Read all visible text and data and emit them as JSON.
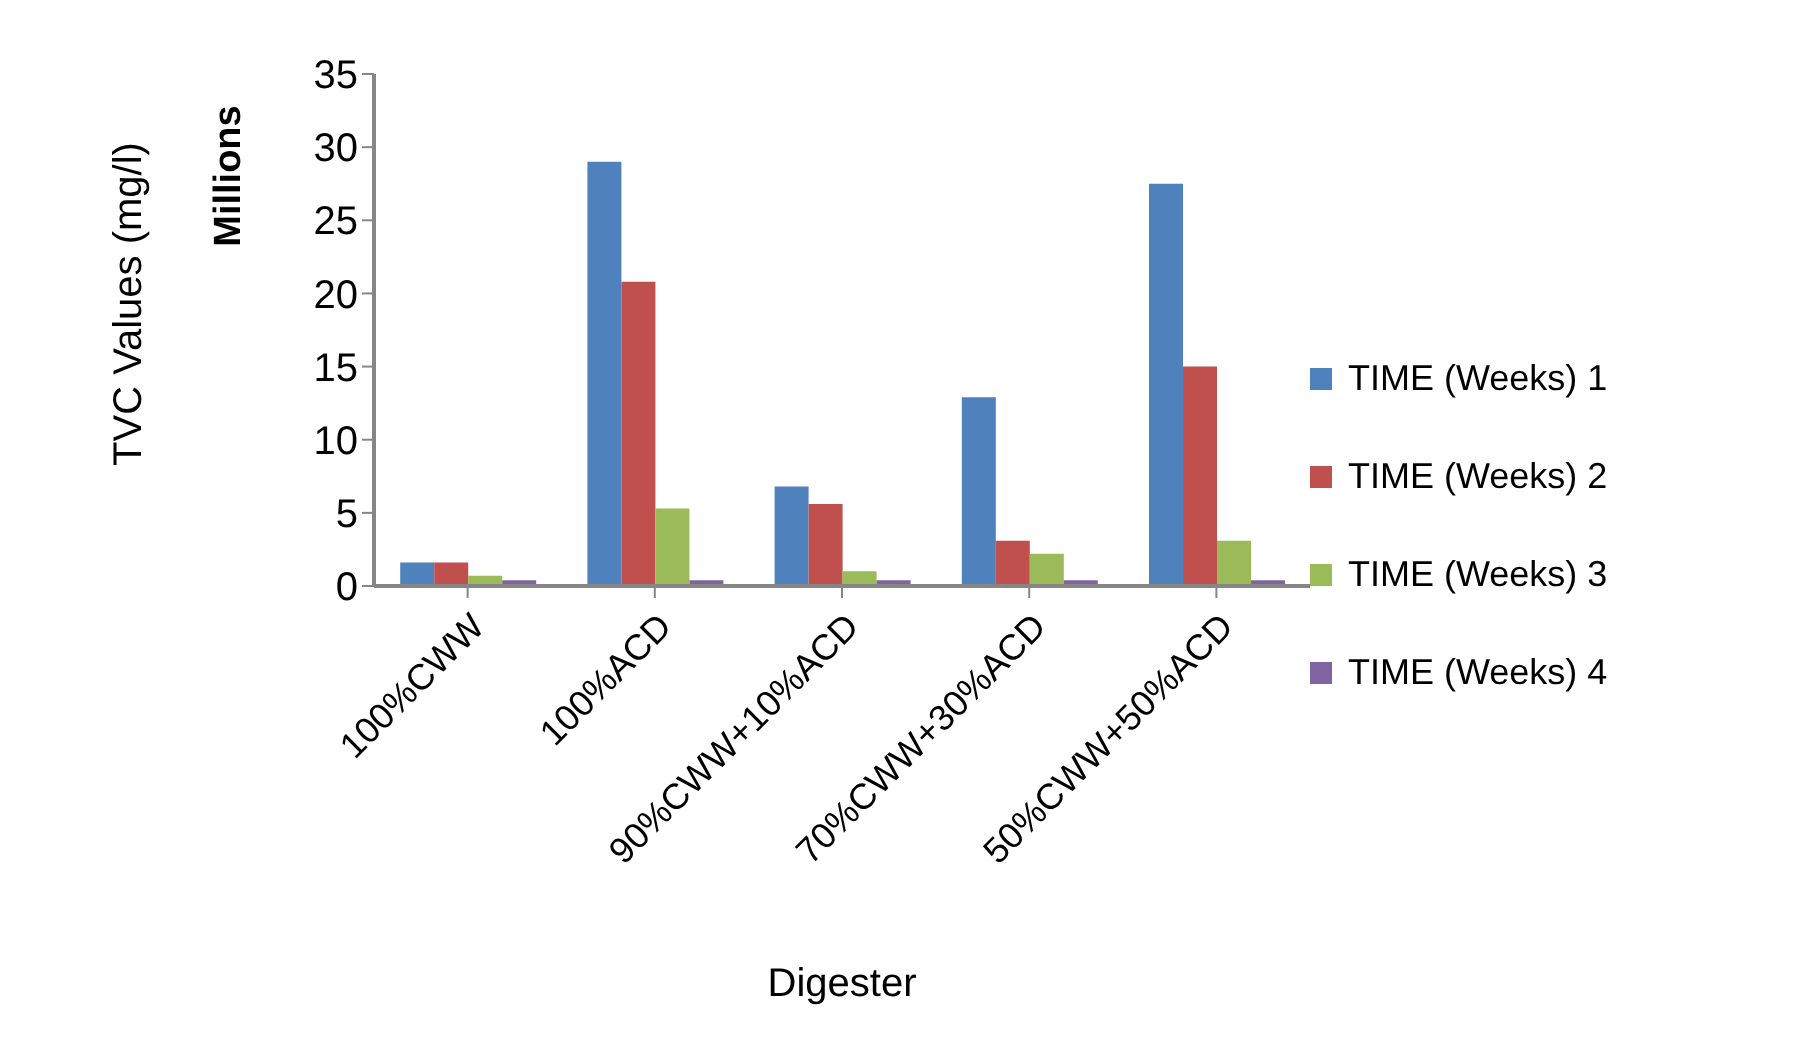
{
  "chart_data": {
    "type": "bar",
    "xlabel": "Digester",
    "ylabel": "TVC Values (mg/l)",
    "annotations": [
      "Millions"
    ],
    "categories": [
      "100%CWW",
      "100%ACD",
      "90%CWW+10%ACD",
      "70%CWW+30%ACD",
      "50%CWW+50%ACD"
    ],
    "series": [
      {
        "name": "TIME (Weeks) 1",
        "color": "#4f81bd",
        "values": [
          1.6,
          29.0,
          6.8,
          12.9,
          27.5
        ]
      },
      {
        "name": "TIME (Weeks) 2",
        "color": "#c0504d",
        "values": [
          1.6,
          20.8,
          5.6,
          3.1,
          15.0
        ]
      },
      {
        "name": "TIME (Weeks) 3",
        "color": "#9bbb59",
        "values": [
          0.7,
          5.3,
          1.0,
          2.2,
          3.1
        ]
      },
      {
        "name": "TIME (Weeks) 4",
        "color": "#8064a2",
        "values": [
          0.4,
          0.4,
          0.4,
          0.4,
          0.4
        ]
      }
    ],
    "ylim": [
      0,
      35
    ],
    "yticks": [
      0,
      5,
      10,
      15,
      20,
      25,
      30,
      35
    ],
    "grid": false,
    "legend": "right"
  }
}
